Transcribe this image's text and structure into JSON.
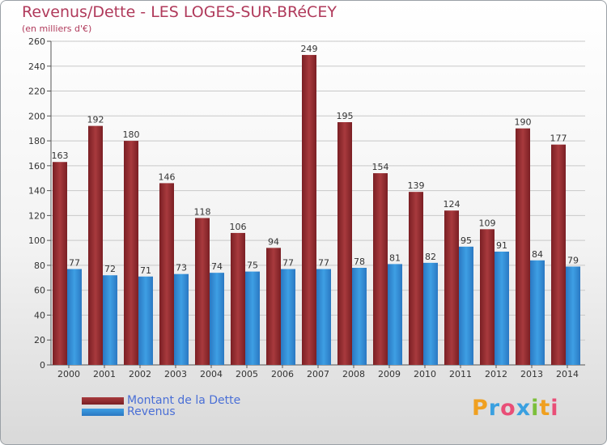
{
  "title": "Revenus/Dette - LES LOGES-SUR-BRéCEY",
  "subtitle": "(en milliers d'€)",
  "logo_text": "Proxiti",
  "colors": {
    "debt": "#7a1f24",
    "debt_light": "#a83a3d",
    "revenue": "#3e9fe4",
    "revenue_dark": "#2a78c2",
    "grid": "#c8c8c8",
    "text": "#333333",
    "title": "#b03a5b",
    "legend_text": "#4a6fd6"
  },
  "chart_data": {
    "type": "bar",
    "categories": [
      "2000",
      "2001",
      "2002",
      "2003",
      "2004",
      "2005",
      "2006",
      "2007",
      "2008",
      "2009",
      "2010",
      "2011",
      "2012",
      "2013",
      "2014"
    ],
    "series": [
      {
        "name": "Montant de la Dette",
        "values": [
          163,
          192,
          180,
          146,
          118,
          106,
          94,
          249,
          195,
          154,
          139,
          124,
          109,
          190,
          177
        ]
      },
      {
        "name": "Revenus",
        "values": [
          77,
          72,
          71,
          73,
          74,
          75,
          77,
          77,
          78,
          81,
          82,
          95,
          91,
          84,
          79
        ]
      }
    ],
    "ylim": [
      0,
      260
    ],
    "yticks": [
      0,
      20,
      40,
      60,
      80,
      100,
      120,
      140,
      160,
      180,
      200,
      220,
      240,
      260
    ],
    "grid": true,
    "legend_position": "bottom-left"
  }
}
